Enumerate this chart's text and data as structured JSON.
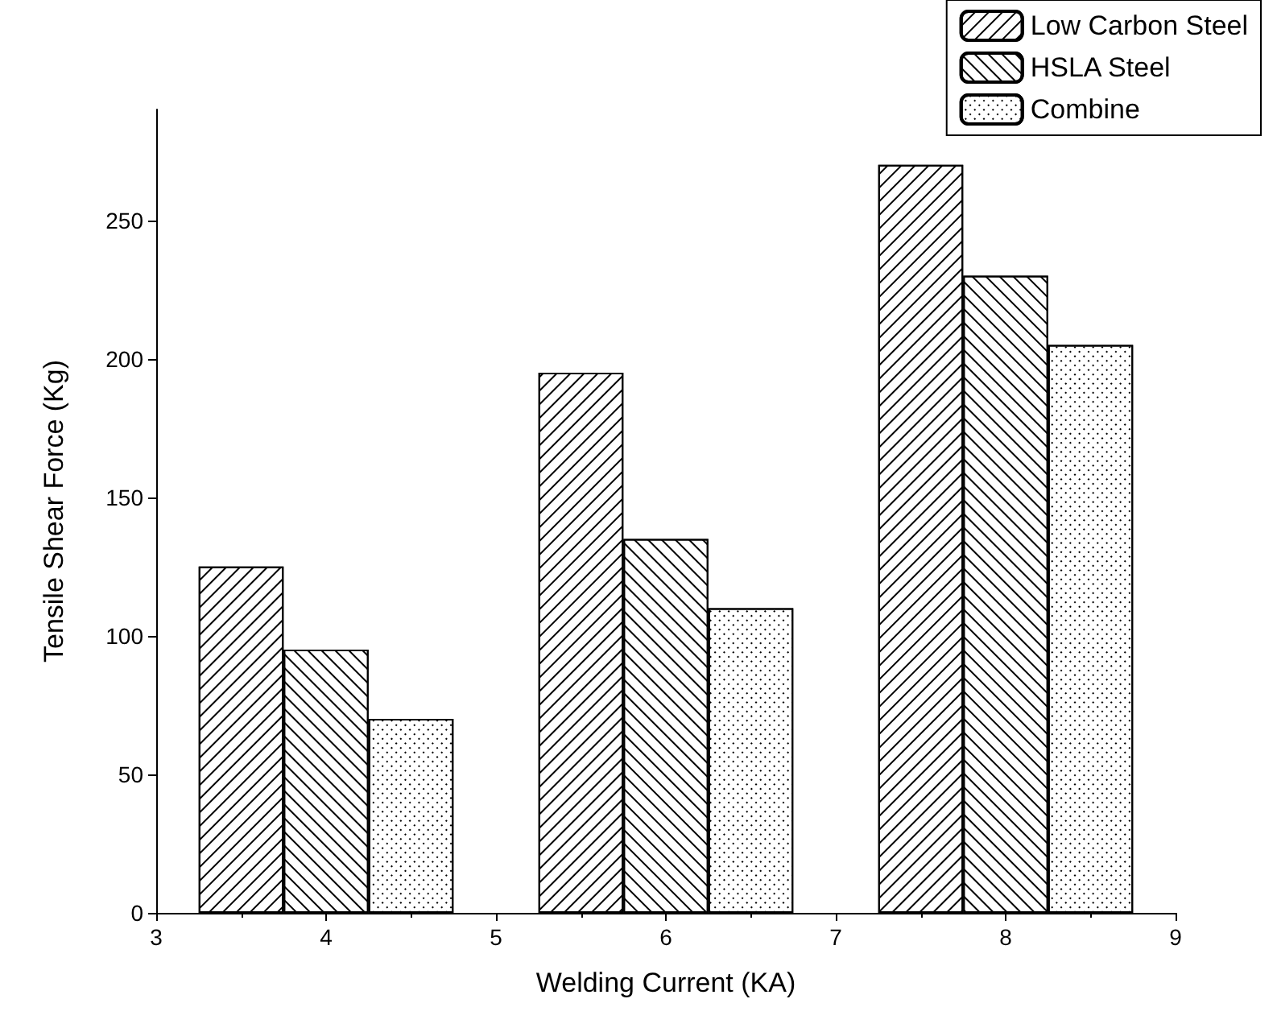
{
  "chart_data": {
    "type": "bar",
    "xlabel": "Welding Current (KA)",
    "ylabel": "Tensile Shear Force (Kg)",
    "x": [
      4,
      6,
      8
    ],
    "series": [
      {
        "name": "Low Carbon Steel",
        "color": "#ffffff",
        "values": [
          125,
          195,
          270
        ]
      },
      {
        "name": "HSLA Steel",
        "color": "#ffffff",
        "values": [
          95,
          135,
          230
        ]
      },
      {
        "name": "Combine",
        "color": "#ffffff",
        "values": [
          70,
          110,
          205
        ]
      }
    ],
    "xlim": [
      3,
      9
    ],
    "xticks": [
      3,
      4,
      5,
      6,
      7,
      8,
      9
    ],
    "ylim": [
      0,
      290
    ],
    "yticks": [
      0,
      50,
      100,
      150,
      200,
      250
    ],
    "grid": false,
    "legend": "top right"
  }
}
